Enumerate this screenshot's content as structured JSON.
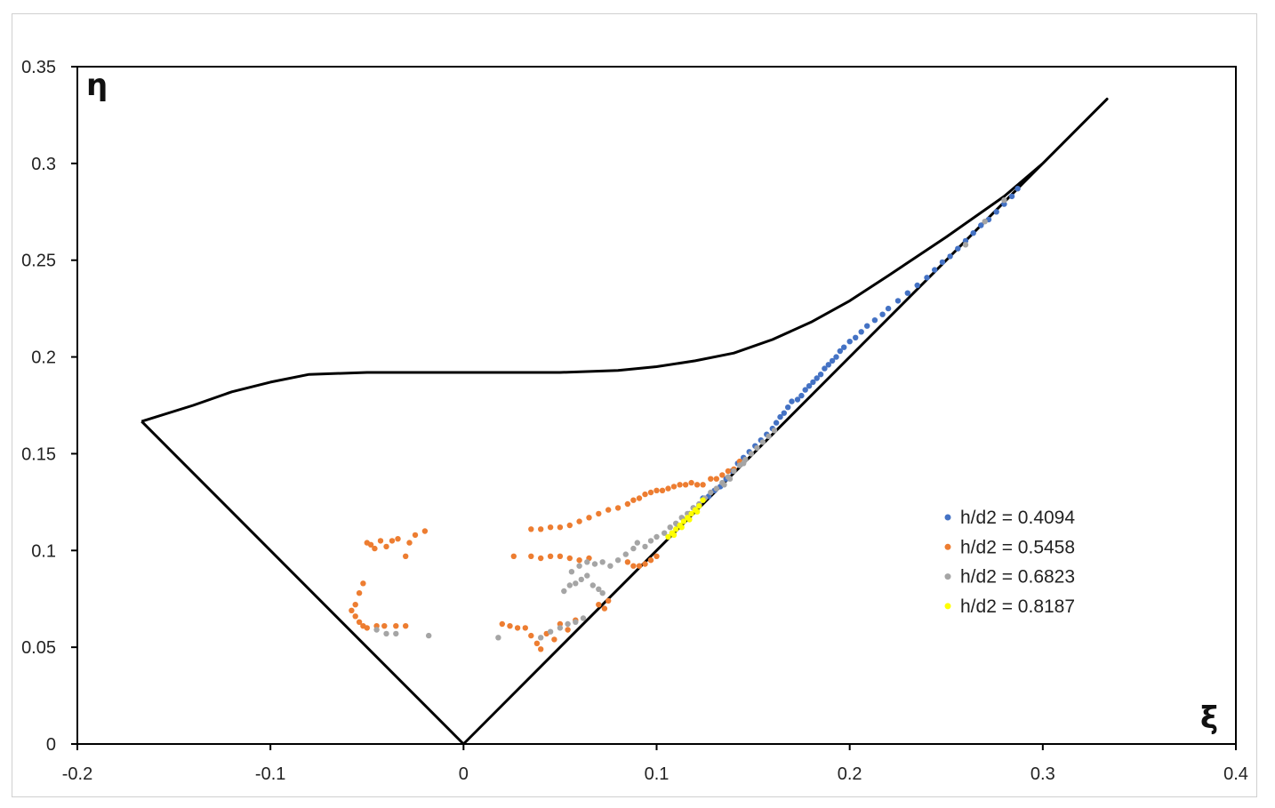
{
  "chart_data": {
    "type": "scatter",
    "title": "",
    "xlabel": "ξ",
    "ylabel": "η",
    "xlim": [
      -0.2,
      0.4
    ],
    "ylim": [
      0,
      0.35
    ],
    "x_ticks": [
      "-0.2",
      "-0.1",
      "0",
      "0.1",
      "0.2",
      "0.3",
      "0.4"
    ],
    "y_ticks": [
      "0",
      "0.05",
      "0.1",
      "0.15",
      "0.2",
      "0.25",
      "0.3",
      "0.35"
    ],
    "x_tick_values": [
      -0.2,
      -0.1,
      0,
      0.1,
      0.2,
      0.3,
      0.4
    ],
    "y_tick_values": [
      0,
      0.05,
      0.1,
      0.15,
      0.2,
      0.25,
      0.3,
      0.35
    ],
    "grid": false,
    "legend_position": "right-middle",
    "boundary": {
      "color": "#000000",
      "points": [
        [
          -0.1667,
          0.1667
        ],
        [
          0,
          0
        ],
        [
          0.3333,
          0.3333
        ],
        [
          0.3,
          0.3
        ],
        [
          0.28,
          0.283
        ],
        [
          0.25,
          0.262
        ],
        [
          0.22,
          0.242
        ],
        [
          0.2,
          0.229
        ],
        [
          0.18,
          0.218
        ],
        [
          0.16,
          0.209
        ],
        [
          0.14,
          0.202
        ],
        [
          0.12,
          0.198
        ],
        [
          0.1,
          0.195
        ],
        [
          0.08,
          0.193
        ],
        [
          0.05,
          0.192
        ],
        [
          0.0,
          0.192
        ],
        [
          -0.05,
          0.192
        ],
        [
          -0.08,
          0.191
        ],
        [
          -0.1,
          0.187
        ],
        [
          -0.12,
          0.182
        ],
        [
          -0.14,
          0.175
        ],
        [
          -0.1667,
          0.1667
        ]
      ]
    },
    "series": [
      {
        "name": "h/d2 = 0.4094",
        "color": "#4472c4",
        "points": [
          [
            0.108,
            0.109
          ],
          [
            0.111,
            0.113
          ],
          [
            0.114,
            0.116
          ],
          [
            0.117,
            0.119
          ],
          [
            0.119,
            0.122
          ],
          [
            0.122,
            0.123
          ],
          [
            0.124,
            0.127
          ],
          [
            0.127,
            0.128
          ],
          [
            0.13,
            0.131
          ],
          [
            0.133,
            0.133
          ],
          [
            0.136,
            0.137
          ],
          [
            0.139,
            0.141
          ],
          [
            0.142,
            0.145
          ],
          [
            0.145,
            0.148
          ],
          [
            0.148,
            0.151
          ],
          [
            0.151,
            0.154
          ],
          [
            0.154,
            0.157
          ],
          [
            0.157,
            0.16
          ],
          [
            0.16,
            0.163
          ],
          [
            0.162,
            0.166
          ],
          [
            0.164,
            0.169
          ],
          [
            0.166,
            0.171
          ],
          [
            0.168,
            0.174
          ],
          [
            0.17,
            0.177
          ],
          [
            0.173,
            0.178
          ],
          [
            0.175,
            0.18
          ],
          [
            0.177,
            0.183
          ],
          [
            0.179,
            0.185
          ],
          [
            0.181,
            0.187
          ],
          [
            0.183,
            0.189
          ],
          [
            0.185,
            0.191
          ],
          [
            0.187,
            0.194
          ],
          [
            0.189,
            0.196
          ],
          [
            0.191,
            0.198
          ],
          [
            0.193,
            0.2
          ],
          [
            0.195,
            0.203
          ],
          [
            0.197,
            0.205
          ],
          [
            0.2,
            0.208
          ],
          [
            0.203,
            0.21
          ],
          [
            0.206,
            0.213
          ],
          [
            0.209,
            0.216
          ],
          [
            0.213,
            0.219
          ],
          [
            0.217,
            0.222
          ],
          [
            0.22,
            0.225
          ],
          [
            0.225,
            0.229
          ],
          [
            0.23,
            0.233
          ],
          [
            0.235,
            0.237
          ],
          [
            0.24,
            0.241
          ],
          [
            0.244,
            0.245
          ],
          [
            0.248,
            0.249
          ],
          [
            0.252,
            0.252
          ],
          [
            0.256,
            0.256
          ],
          [
            0.26,
            0.26
          ],
          [
            0.264,
            0.264
          ],
          [
            0.268,
            0.268
          ],
          [
            0.272,
            0.271
          ],
          [
            0.276,
            0.275
          ],
          [
            0.28,
            0.279
          ],
          [
            0.284,
            0.283
          ],
          [
            0.287,
            0.287
          ]
        ]
      },
      {
        "name": "h/d2 = 0.5458",
        "color": "#ed7d31",
        "points": [
          [
            -0.05,
            0.104
          ],
          [
            -0.048,
            0.103
          ],
          [
            -0.046,
            0.101
          ],
          [
            -0.043,
            0.105
          ],
          [
            -0.04,
            0.102
          ],
          [
            -0.037,
            0.105
          ],
          [
            -0.034,
            0.106
          ],
          [
            -0.03,
            0.097
          ],
          [
            -0.028,
            0.104
          ],
          [
            -0.025,
            0.108
          ],
          [
            -0.02,
            0.11
          ],
          [
            -0.052,
            0.083
          ],
          [
            -0.054,
            0.078
          ],
          [
            -0.056,
            0.072
          ],
          [
            -0.058,
            0.069
          ],
          [
            -0.056,
            0.066
          ],
          [
            -0.054,
            0.063
          ],
          [
            -0.052,
            0.061
          ],
          [
            -0.05,
            0.06
          ],
          [
            -0.045,
            0.061
          ],
          [
            -0.041,
            0.061
          ],
          [
            -0.035,
            0.061
          ],
          [
            -0.03,
            0.061
          ],
          [
            0.02,
            0.062
          ],
          [
            0.024,
            0.061
          ],
          [
            0.028,
            0.06
          ],
          [
            0.032,
            0.06
          ],
          [
            0.035,
            0.056
          ],
          [
            0.038,
            0.052
          ],
          [
            0.04,
            0.049
          ],
          [
            0.043,
            0.057
          ],
          [
            0.047,
            0.054
          ],
          [
            0.05,
            0.062
          ],
          [
            0.054,
            0.059
          ],
          [
            0.058,
            0.064
          ],
          [
            0.026,
            0.097
          ],
          [
            0.035,
            0.097
          ],
          [
            0.04,
            0.096
          ],
          [
            0.045,
            0.097
          ],
          [
            0.05,
            0.097
          ],
          [
            0.055,
            0.096
          ],
          [
            0.06,
            0.095
          ],
          [
            0.065,
            0.096
          ],
          [
            0.035,
            0.111
          ],
          [
            0.04,
            0.111
          ],
          [
            0.045,
            0.112
          ],
          [
            0.05,
            0.112
          ],
          [
            0.055,
            0.113
          ],
          [
            0.06,
            0.115
          ],
          [
            0.065,
            0.117
          ],
          [
            0.07,
            0.119
          ],
          [
            0.075,
            0.121
          ],
          [
            0.08,
            0.122
          ],
          [
            0.085,
            0.124
          ],
          [
            0.088,
            0.126
          ],
          [
            0.091,
            0.127
          ],
          [
            0.094,
            0.129
          ],
          [
            0.097,
            0.13
          ],
          [
            0.1,
            0.131
          ],
          [
            0.103,
            0.131
          ],
          [
            0.106,
            0.132
          ],
          [
            0.109,
            0.133
          ],
          [
            0.112,
            0.134
          ],
          [
            0.115,
            0.134
          ],
          [
            0.118,
            0.135
          ],
          [
            0.121,
            0.134
          ],
          [
            0.124,
            0.134
          ],
          [
            0.128,
            0.137
          ],
          [
            0.131,
            0.137
          ],
          [
            0.134,
            0.139
          ],
          [
            0.137,
            0.141
          ],
          [
            0.14,
            0.142
          ],
          [
            0.143,
            0.146
          ],
          [
            0.085,
            0.094
          ],
          [
            0.088,
            0.092
          ],
          [
            0.091,
            0.092
          ],
          [
            0.094,
            0.093
          ],
          [
            0.097,
            0.095
          ],
          [
            0.1,
            0.097
          ],
          [
            0.07,
            0.072
          ],
          [
            0.073,
            0.07
          ],
          [
            0.075,
            0.074
          ]
        ]
      },
      {
        "name": "h/d2 = 0.6823",
        "color": "#a5a5a5",
        "points": [
          [
            -0.045,
            0.059
          ],
          [
            -0.04,
            0.057
          ],
          [
            -0.035,
            0.057
          ],
          [
            -0.018,
            0.056
          ],
          [
            0.018,
            0.055
          ],
          [
            0.04,
            0.055
          ],
          [
            0.045,
            0.058
          ],
          [
            0.05,
            0.06
          ],
          [
            0.054,
            0.062
          ],
          [
            0.058,
            0.063
          ],
          [
            0.062,
            0.065
          ],
          [
            0.052,
            0.079
          ],
          [
            0.055,
            0.082
          ],
          [
            0.058,
            0.083
          ],
          [
            0.061,
            0.085
          ],
          [
            0.064,
            0.087
          ],
          [
            0.067,
            0.082
          ],
          [
            0.07,
            0.08
          ],
          [
            0.072,
            0.078
          ],
          [
            0.056,
            0.089
          ],
          [
            0.06,
            0.092
          ],
          [
            0.064,
            0.094
          ],
          [
            0.068,
            0.093
          ],
          [
            0.072,
            0.094
          ],
          [
            0.076,
            0.092
          ],
          [
            0.08,
            0.095
          ],
          [
            0.084,
            0.098
          ],
          [
            0.088,
            0.101
          ],
          [
            0.09,
            0.104
          ],
          [
            0.094,
            0.102
          ],
          [
            0.097,
            0.105
          ],
          [
            0.1,
            0.107
          ],
          [
            0.104,
            0.109
          ],
          [
            0.107,
            0.112
          ],
          [
            0.11,
            0.114
          ],
          [
            0.113,
            0.117
          ],
          [
            0.116,
            0.119
          ],
          [
            0.119,
            0.122
          ],
          [
            0.122,
            0.124
          ],
          [
            0.125,
            0.127
          ],
          [
            0.128,
            0.13
          ],
          [
            0.131,
            0.132
          ],
          [
            0.134,
            0.135
          ],
          [
            0.137,
            0.138
          ],
          [
            0.14,
            0.141
          ],
          [
            0.143,
            0.144
          ],
          [
            0.146,
            0.147
          ],
          [
            0.149,
            0.15
          ],
          [
            0.152,
            0.153
          ],
          [
            0.155,
            0.156
          ],
          [
            0.158,
            0.159
          ],
          [
            0.161,
            0.162
          ],
          [
            0.135,
            0.134
          ],
          [
            0.138,
            0.137
          ],
          [
            0.145,
            0.145
          ],
          [
            0.26,
            0.258
          ],
          [
            0.27,
            0.27
          ],
          [
            0.28,
            0.281
          ]
        ]
      },
      {
        "name": "h/d2 = 0.8187",
        "color": "#ffff00",
        "points": [
          [
            0.106,
            0.107
          ],
          [
            0.108,
            0.109
          ],
          [
            0.11,
            0.111
          ],
          [
            0.112,
            0.113
          ],
          [
            0.114,
            0.115
          ],
          [
            0.116,
            0.117
          ],
          [
            0.118,
            0.119
          ],
          [
            0.12,
            0.121
          ],
          [
            0.122,
            0.123
          ],
          [
            0.124,
            0.126
          ],
          [
            0.109,
            0.108
          ],
          [
            0.113,
            0.112
          ],
          [
            0.117,
            0.116
          ],
          [
            0.121,
            0.12
          ]
        ]
      }
    ]
  }
}
